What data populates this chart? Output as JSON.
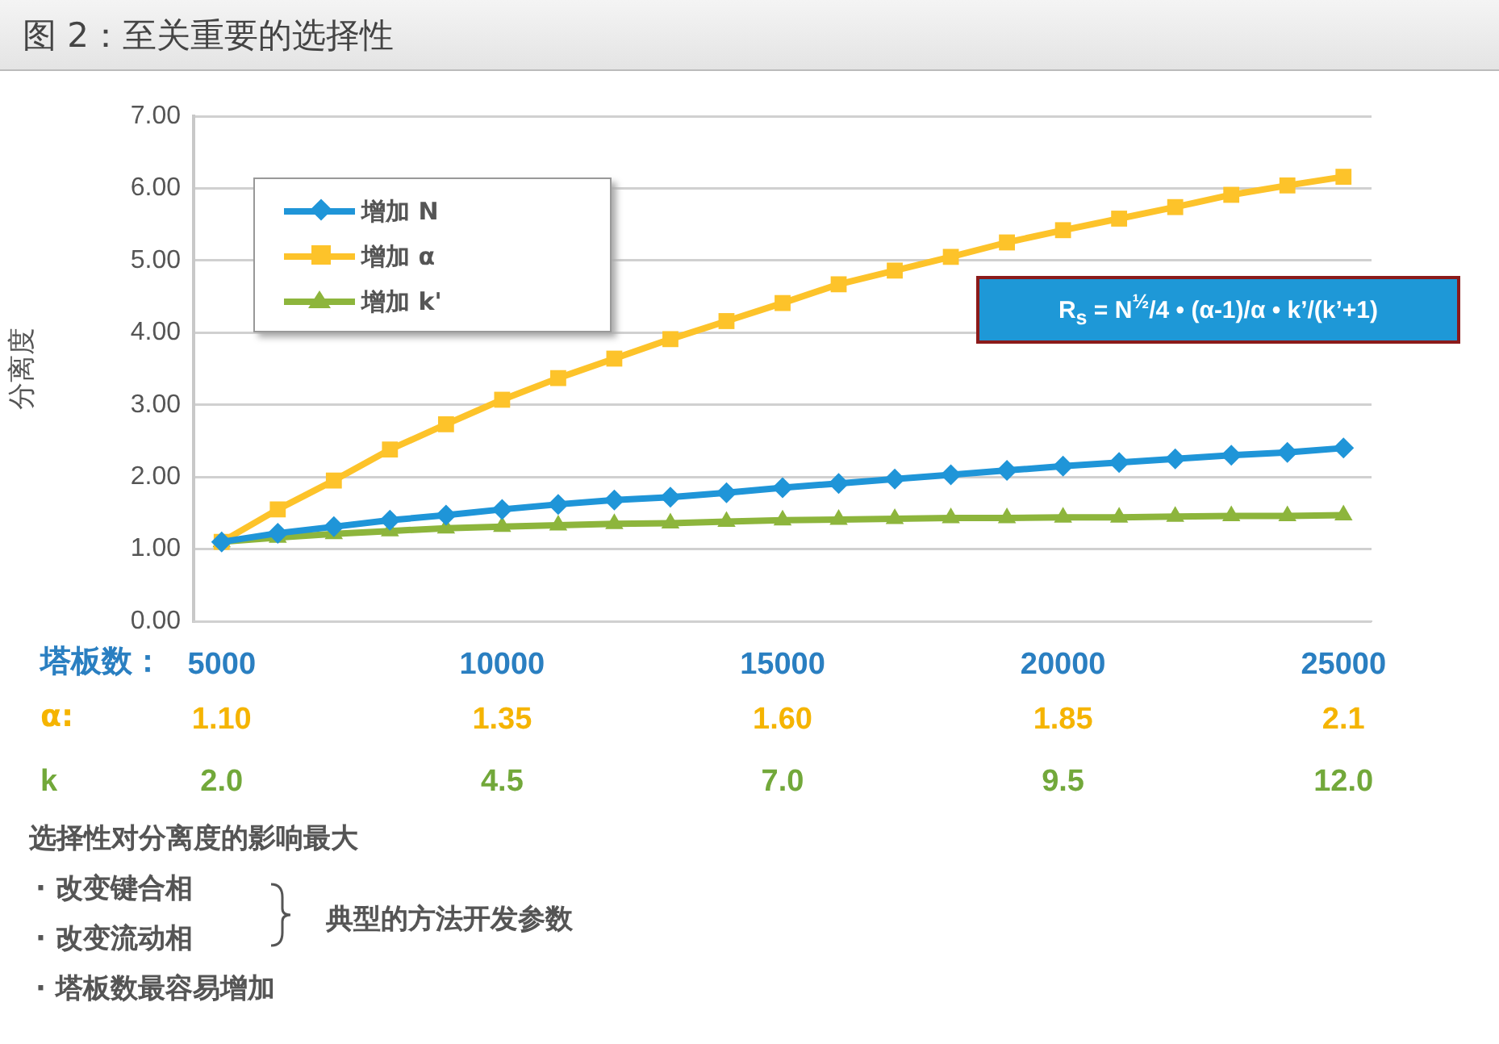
{
  "chart_data": {
    "type": "line",
    "title": "图 2：至关重要的选择性",
    "ylabel": "分离度",
    "xlabel": "塔板数：",
    "x2label": "α:",
    "x": [
      5000,
      6000,
      7000,
      8000,
      9000,
      10000,
      11000,
      12000,
      13000,
      14000,
      15000,
      16000,
      17000,
      18000,
      19000,
      20000,
      21000,
      22000,
      23000,
      24000,
      25000
    ],
    "series": [
      {
        "name": "增加 N",
        "color": "#1f95d8",
        "marker": "diamond",
        "values": [
          1.1,
          1.22,
          1.31,
          1.4,
          1.47,
          1.55,
          1.62,
          1.68,
          1.72,
          1.78,
          1.85,
          1.91,
          1.97,
          2.03,
          2.09,
          2.15,
          2.2,
          2.25,
          2.3,
          2.34,
          2.4
        ]
      },
      {
        "name": "增加 α",
        "color": "#fdc32a",
        "marker": "square",
        "values": [
          1.1,
          1.55,
          1.95,
          2.38,
          2.73,
          3.07,
          3.37,
          3.64,
          3.91,
          4.16,
          4.41,
          4.67,
          4.86,
          5.05,
          5.25,
          5.42,
          5.58,
          5.74,
          5.91,
          6.04,
          6.16
        ]
      },
      {
        "name": "增加 k'",
        "color": "#8db53c",
        "marker": "triangle",
        "values": [
          1.1,
          1.16,
          1.21,
          1.25,
          1.29,
          1.31,
          1.33,
          1.35,
          1.36,
          1.38,
          1.4,
          1.41,
          1.42,
          1.43,
          1.43,
          1.44,
          1.44,
          1.45,
          1.46,
          1.46,
          1.47
        ]
      }
    ],
    "xlim": [
      4500,
      25500
    ],
    "xticks": [
      5000,
      10000,
      15000,
      20000,
      25000
    ],
    "x2lim": [
      1.075,
      2.125
    ],
    "x2ticks": [
      {
        "value": 1.1,
        "label": "1.10"
      },
      {
        "value": 1.35,
        "label": "1.35"
      },
      {
        "value": 1.6,
        "label": "1.60"
      },
      {
        "value": 1.85,
        "label": "1.85"
      },
      {
        "value": 2.1,
        "label": "2.1"
      }
    ],
    "ylim": [
      0,
      7
    ],
    "yticks": [
      {
        "value": 0,
        "label": "0.00"
      },
      {
        "value": 1,
        "label": "1.00"
      },
      {
        "value": 2,
        "label": "2.00"
      },
      {
        "value": 3,
        "label": "3.00"
      },
      {
        "value": 4,
        "label": "4.00"
      },
      {
        "value": 5,
        "label": "5.00"
      },
      {
        "value": 6,
        "label": "6.00"
      },
      {
        "value": 7,
        "label": "7.00"
      }
    ],
    "grid": "y",
    "legend": "top left",
    "line_style": "solid",
    "annotations": [
      "R$_{s}$ = N$^{½}$/4 • (α-1)/α • k’/(k’+1)",
      "k",
      "2.0",
      "4.5",
      "7.0",
      "9.5",
      "12.0",
      "选择性对分离度的影响最大",
      "·  改变键合相",
      "·  改变流动相",
      "典型的方法开发参数",
      "·  塔板数最容易增加"
    ]
  }
}
